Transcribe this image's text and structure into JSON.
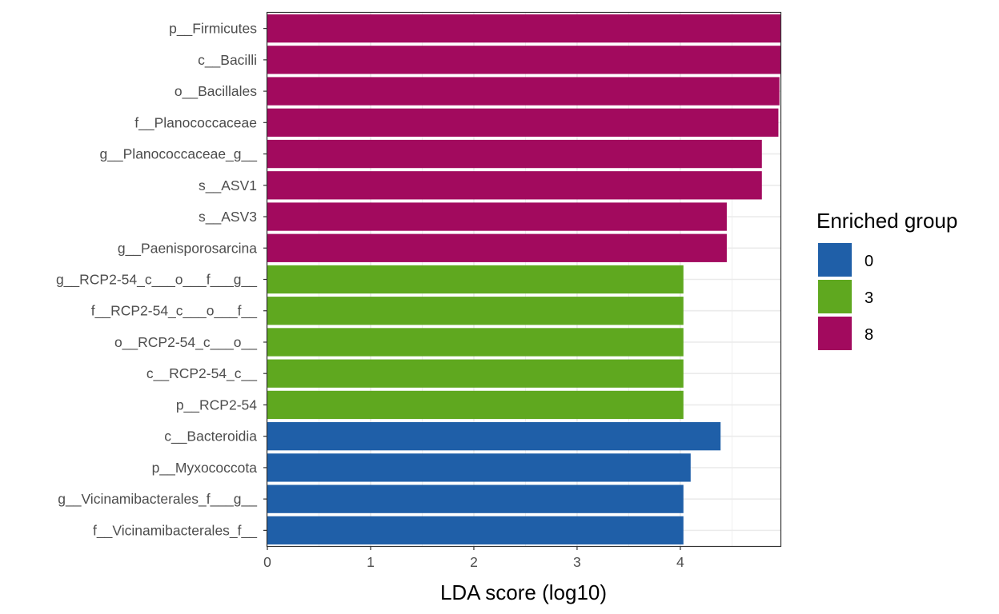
{
  "chart_data": {
    "type": "bar",
    "orientation": "horizontal",
    "xlabel": "LDA score (log10)",
    "ylabel": "",
    "xlim": [
      0,
      4.97
    ],
    "x_ticks": [
      "0",
      "1",
      "2",
      "3",
      "4"
    ],
    "grid": true,
    "legend": {
      "title": "Enriched group",
      "placement": "right",
      "entries": [
        {
          "label": "0",
          "color": "#1F5FA8"
        },
        {
          "label": "3",
          "color": "#5FA81F"
        },
        {
          "label": "8",
          "color": "#A20A5E"
        }
      ]
    },
    "bars": [
      {
        "label": "p__Firmicutes",
        "value": 4.97,
        "group": "8"
      },
      {
        "label": "c__Bacilli",
        "value": 4.97,
        "group": "8"
      },
      {
        "label": "o__Bacillales",
        "value": 4.96,
        "group": "8"
      },
      {
        "label": "f__Planococcaceae",
        "value": 4.95,
        "group": "8"
      },
      {
        "label": "g__Planococcaceae_g__",
        "value": 4.79,
        "group": "8"
      },
      {
        "label": "s__ASV1",
        "value": 4.79,
        "group": "8"
      },
      {
        "label": "s__ASV3",
        "value": 4.45,
        "group": "8"
      },
      {
        "label": "g__Paenisporosarcina",
        "value": 4.45,
        "group": "8"
      },
      {
        "label": "g__RCP2-54_c___o___f___g__",
        "value": 4.03,
        "group": "3"
      },
      {
        "label": "f__RCP2-54_c___o___f__",
        "value": 4.03,
        "group": "3"
      },
      {
        "label": "o__RCP2-54_c___o__",
        "value": 4.03,
        "group": "3"
      },
      {
        "label": "c__RCP2-54_c__",
        "value": 4.03,
        "group": "3"
      },
      {
        "label": "p__RCP2-54",
        "value": 4.03,
        "group": "3"
      },
      {
        "label": "c__Bacteroidia",
        "value": 4.39,
        "group": "0"
      },
      {
        "label": "p__Myxococcota",
        "value": 4.1,
        "group": "0"
      },
      {
        "label": "g__Vicinamibacterales_f___g__",
        "value": 4.03,
        "group": "0"
      },
      {
        "label": "f__Vicinamibacterales_f__",
        "value": 4.03,
        "group": "0"
      }
    ]
  }
}
